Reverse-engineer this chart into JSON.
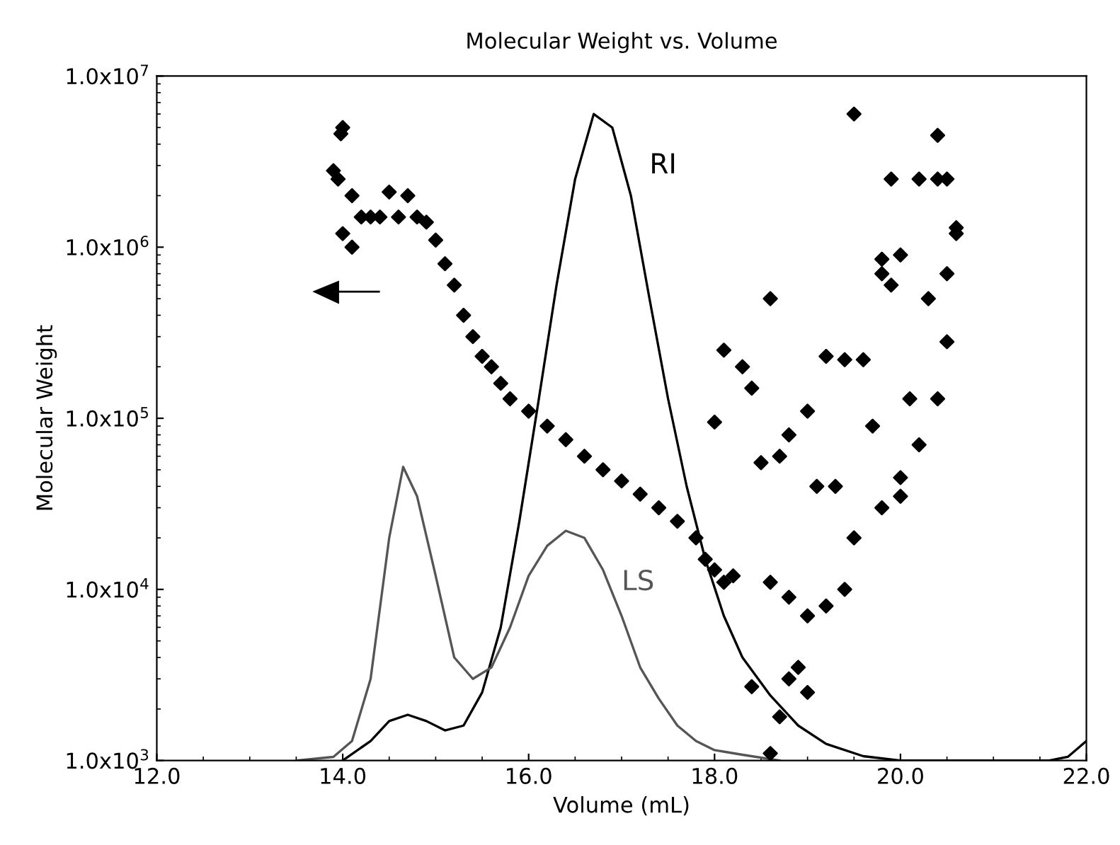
{
  "chart_data": {
    "type": "scatter",
    "title": "Molecular Weight vs. Volume",
    "xlabel": "Volume (mL)",
    "ylabel": "Molecular Weight",
    "log": "y",
    "xlim": [
      12.0,
      22.0
    ],
    "xticks": [
      {
        "value": 12,
        "label": "12.0"
      },
      {
        "value": 14,
        "label": "14.0"
      },
      {
        "value": 16,
        "label": "16.0"
      },
      {
        "value": 18,
        "label": "18.0"
      },
      {
        "value": 20,
        "label": "20.0"
      },
      {
        "value": 22,
        "label": "22.0"
      }
    ],
    "ylim": [
      1000,
      10000000
    ],
    "yticks": [
      {
        "value": 1000,
        "label": "1.0x10$^{3}$"
      },
      {
        "value": 10000,
        "label": "1.0x10$^{4}$"
      },
      {
        "value": 100000,
        "label": "1.0x10$^{5}$"
      },
      {
        "value": 1000000,
        "label": "1.0x10$^{6}$"
      },
      {
        "value": 10000000,
        "label": "1.0x10$^{7}$"
      }
    ],
    "grid": false,
    "legend": false,
    "series": [
      {
        "type": "line",
        "name": "RI",
        "color": "#000000",
        "marker": "none",
        "line_style": "solid",
        "x": [
          14.0,
          14.3,
          14.5,
          14.7,
          14.9,
          15.1,
          15.3,
          15.5,
          15.7,
          15.9,
          16.1,
          16.3,
          16.5,
          16.7,
          16.9,
          17.1,
          17.3,
          17.5,
          17.7,
          17.9,
          18.1,
          18.3,
          18.6,
          18.9,
          19.2,
          19.6,
          20.0,
          21.6,
          21.8,
          22.0
        ],
        "values": [
          1000,
          1300,
          1700,
          1850,
          1700,
          1500,
          1600,
          2500,
          6000,
          25000,
          120000,
          600000,
          2500000,
          6000000,
          5000000,
          2000000,
          500000,
          130000,
          40000,
          15000,
          7000,
          4000,
          2400,
          1600,
          1250,
          1060,
          1000,
          1000,
          1050,
          1300
        ]
      },
      {
        "type": "line",
        "name": "LS",
        "color": "#555555",
        "marker": "none",
        "line_style": "solid",
        "x": [
          13.5,
          13.9,
          14.1,
          14.3,
          14.5,
          14.65,
          14.8,
          15.0,
          15.2,
          15.4,
          15.6,
          15.8,
          16.0,
          16.2,
          16.4,
          16.6,
          16.8,
          17.0,
          17.2,
          17.4,
          17.6,
          17.8,
          18.0,
          18.3,
          18.7
        ],
        "values": [
          1000,
          1050,
          1300,
          3000,
          20000,
          52000,
          35000,
          12000,
          4000,
          3000,
          3500,
          6000,
          12000,
          18000,
          22000,
          20000,
          13000,
          7000,
          3500,
          2300,
          1600,
          1300,
          1150,
          1080,
          1000
        ]
      },
      {
        "color": "#000000",
        "marker": "diamond",
        "x": [
          13.9,
          13.95,
          14.0,
          13.98,
          14.0,
          14.1,
          14.1,
          14.2,
          14.3,
          14.4,
          14.5,
          14.6,
          14.7,
          14.8,
          14.9,
          15.0,
          15.1,
          15.2,
          15.3,
          15.4,
          15.5,
          15.6,
          15.7,
          15.8,
          16.0,
          16.2,
          16.4,
          16.6,
          16.8,
          17.0,
          17.2,
          17.4,
          17.6,
          17.8,
          17.9,
          18.0,
          18.1,
          18.2,
          18.0,
          18.1,
          18.3,
          18.4,
          18.6,
          18.7,
          18.8,
          18.5,
          19.0,
          18.6,
          18.8,
          19.0,
          18.9,
          18.8,
          19.0,
          18.7,
          18.6,
          18.4,
          19.2,
          19.4,
          19.6,
          19.5,
          19.3,
          19.5,
          19.7,
          19.8,
          19.8,
          19.9,
          20.0,
          19.9,
          20.2,
          20.4,
          20.4,
          20.5,
          20.6,
          20.6,
          20.5,
          20.1,
          20.2,
          20.3,
          20.5,
          20.4,
          19.4,
          19.2,
          19.1,
          20.0,
          19.8,
          20.0
        ],
        "values": [
          2800000,
          2500000,
          5000000,
          4600000,
          1200000,
          1000000,
          2000000,
          1500000,
          1500000,
          1500000,
          2100000,
          1500000,
          2000000,
          1500000,
          1400000,
          1100000,
          800000,
          600000,
          400000,
          300000,
          230000,
          200000,
          160000,
          130000,
          110000,
          90000,
          75000,
          60000,
          50000,
          43000,
          36000,
          30000,
          25000,
          20000,
          15000,
          13000,
          11000,
          12000,
          95000,
          250000,
          200000,
          150000,
          500000,
          60000,
          80000,
          55000,
          110000,
          11000,
          9000,
          7000,
          3500,
          3000,
          2500,
          1800,
          1100,
          2700,
          230000,
          220000,
          220000,
          6000000,
          40000,
          20000,
          90000,
          30000,
          700000,
          600000,
          900000,
          2500000,
          2500000,
          4500000,
          2500000,
          2500000,
          1300000,
          1200000,
          700000,
          130000,
          70000,
          500000,
          280000,
          130000,
          10000,
          8000,
          40000,
          35000,
          850000,
          45000
        ]
      }
    ]
  }
}
